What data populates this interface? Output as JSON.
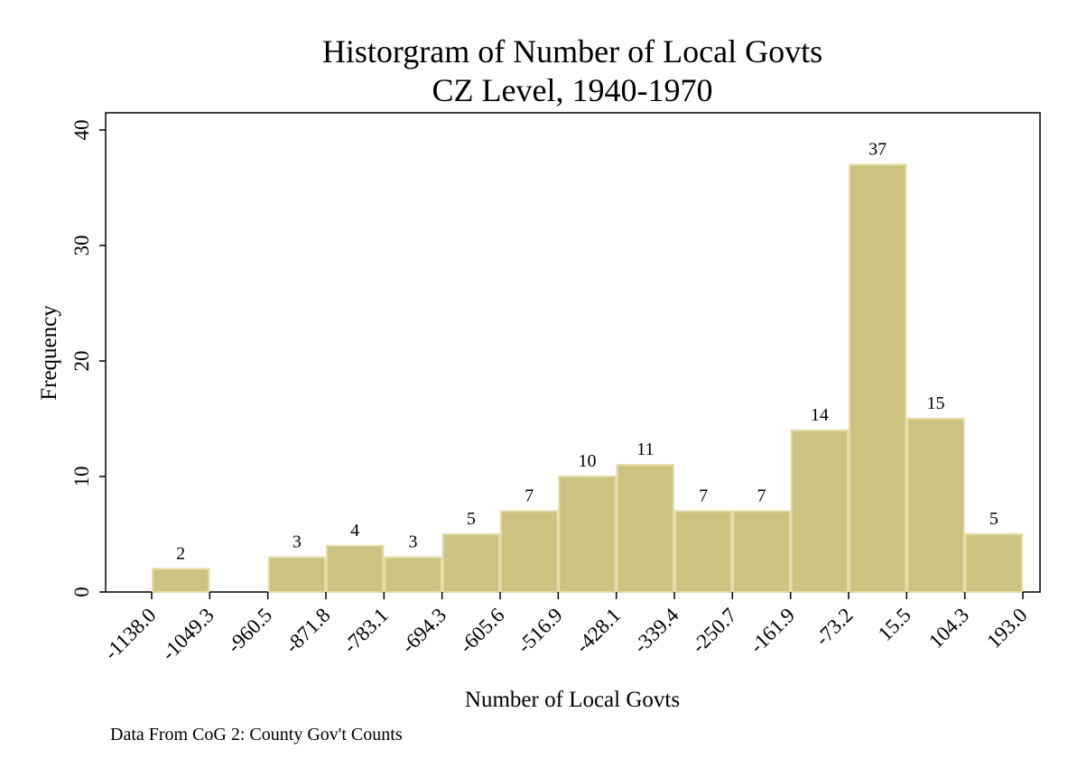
{
  "chart_data": {
    "type": "bar",
    "title": "Historgram of Number of Local Govts",
    "subtitle": "CZ Level, 1940-1970",
    "xlabel": "Number of Local Govts",
    "ylabel": "Frequency",
    "note": "Data From CoG 2: County Gov't Counts",
    "ylim": [
      0,
      41
    ],
    "yticks": [
      0,
      10,
      20,
      30,
      40
    ],
    "bin_edges": [
      -1138.0,
      -1049.3,
      -960.5,
      -871.8,
      -783.1,
      -694.3,
      -605.6,
      -516.9,
      -428.1,
      -339.4,
      -250.7,
      -161.9,
      -73.2,
      15.5,
      104.3,
      193.0
    ],
    "x_tick_labels": [
      "-1138.0",
      "-1049.3",
      "-960.5",
      "-871.8",
      "-783.1",
      "-694.3",
      "-605.6",
      "-516.9",
      "-428.1",
      "-339.4",
      "-250.7",
      "-161.9",
      "-73.2",
      "15.5",
      "104.3",
      "193.0"
    ],
    "values": [
      2,
      0,
      3,
      4,
      3,
      5,
      7,
      10,
      11,
      7,
      7,
      14,
      37,
      15,
      5
    ],
    "bar_labels": [
      "2",
      "",
      "3",
      "4",
      "3",
      "5",
      "7",
      "10",
      "11",
      "7",
      "7",
      "14",
      "37",
      "15",
      "5"
    ],
    "grid": false,
    "colors": {
      "bar_fill": "#cdc381",
      "bar_edge": "#e4dca8",
      "axis": "#000000"
    }
  }
}
